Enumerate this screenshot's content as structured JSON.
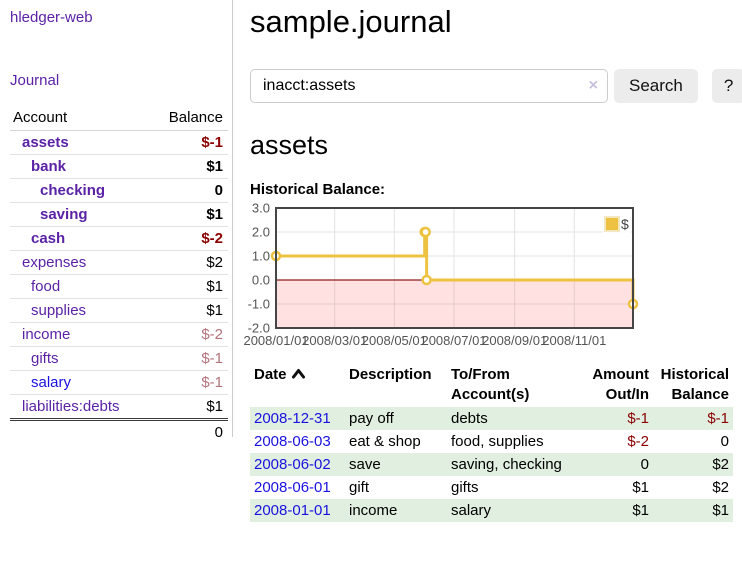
{
  "app": {
    "brand": "hledger-web",
    "nav_journal": "Journal"
  },
  "sidebar": {
    "accounts_table": {
      "headers": {
        "account": "Account",
        "balance": "Balance"
      },
      "rows": [
        {
          "name": "assets",
          "depth": 1,
          "bold": true,
          "link_color": "purple",
          "balance": "$-1",
          "balance_style": "negative_strong"
        },
        {
          "name": "bank",
          "depth": 2,
          "bold": true,
          "link_color": "purple",
          "balance": "$1",
          "balance_style": "normal"
        },
        {
          "name": "checking",
          "depth": 3,
          "bold": true,
          "link_color": "purple",
          "balance": "0",
          "balance_style": "normal"
        },
        {
          "name": "saving",
          "depth": 3,
          "bold": true,
          "link_color": "purple",
          "balance": "$1",
          "balance_style": "normal"
        },
        {
          "name": "cash",
          "depth": 2,
          "bold": true,
          "link_color": "purple",
          "balance": "$-2",
          "balance_style": "negative_strong"
        },
        {
          "name": "expenses",
          "depth": 1,
          "bold": false,
          "link_color": "purple",
          "balance": "$2",
          "balance_style": "normal"
        },
        {
          "name": "food",
          "depth": 2,
          "bold": false,
          "link_color": "purple",
          "balance": "$1",
          "balance_style": "normal"
        },
        {
          "name": "supplies",
          "depth": 2,
          "bold": false,
          "link_color": "purple",
          "balance": "$1",
          "balance_style": "normal"
        },
        {
          "name": "income",
          "depth": 1,
          "bold": false,
          "link_color": "purple",
          "balance": "$-2",
          "balance_style": "negative_muted"
        },
        {
          "name": "gifts",
          "depth": 2,
          "bold": false,
          "link_color": "purple",
          "balance": "$-1",
          "balance_style": "negative_muted"
        },
        {
          "name": "salary",
          "depth": 2,
          "bold": false,
          "link_color": "blue",
          "balance": "$-1",
          "balance_style": "negative_muted"
        },
        {
          "name": "liabilities:debts",
          "depth": 1,
          "bold": false,
          "link_color": "purple",
          "balance": "$1",
          "balance_style": "normal"
        }
      ],
      "total": "0"
    }
  },
  "main": {
    "title": "sample.journal",
    "search": {
      "value": "inacct:assets",
      "clear_icon": "×",
      "button": "Search",
      "help_button": "?"
    },
    "account_heading": "assets",
    "chart_label": "Historical Balance:",
    "register_table": {
      "headers": {
        "date": "Date",
        "description": "Description",
        "accounts": "To/From Account(s)",
        "amount": "Amount Out/In",
        "balance": "Historical Balance"
      },
      "sort": "date-ascending",
      "rows": [
        {
          "date": "2008-12-31",
          "description": "pay off",
          "accounts": "debts",
          "amount": "$-1",
          "amount_negative": true,
          "balance": "$-1",
          "balance_negative": true,
          "shaded": true
        },
        {
          "date": "2008-06-03",
          "description": "eat & shop",
          "accounts": "food, supplies",
          "amount": "$-2",
          "amount_negative": true,
          "balance": "0",
          "balance_negative": false,
          "shaded": false
        },
        {
          "date": "2008-06-02",
          "description": "save",
          "accounts": "saving, checking",
          "amount": "0",
          "amount_negative": false,
          "balance": "$2",
          "balance_negative": false,
          "shaded": true
        },
        {
          "date": "2008-06-01",
          "description": "gift",
          "accounts": "gifts",
          "amount": "$1",
          "amount_negative": false,
          "balance": "$2",
          "balance_negative": false,
          "shaded": false
        },
        {
          "date": "2008-01-01",
          "description": "income",
          "accounts": "salary",
          "amount": "$1",
          "amount_negative": false,
          "balance": "$1",
          "balance_negative": false,
          "shaded": true
        }
      ]
    }
  },
  "chart_data": {
    "type": "line",
    "title": "Historical Balance:",
    "step": true,
    "series": [
      {
        "name": "$",
        "color": "#edc240",
        "points": [
          {
            "date": "2008-01-01",
            "day": 0,
            "value": 1
          },
          {
            "date": "2008-06-01",
            "day": 152,
            "value": 2
          },
          {
            "date": "2008-06-02",
            "day": 153,
            "value": 2
          },
          {
            "date": "2008-06-03",
            "day": 154,
            "value": 0
          },
          {
            "date": "2008-12-31",
            "day": 365,
            "value": -1
          }
        ]
      }
    ],
    "x_ticks": [
      {
        "label": "2008/01/01",
        "day": 0
      },
      {
        "label": "2008/03/01",
        "day": 60
      },
      {
        "label": "2008/05/01",
        "day": 121
      },
      {
        "label": "2008/07/01",
        "day": 182
      },
      {
        "label": "2008/09/01",
        "day": 244
      },
      {
        "label": "2008/11/01",
        "day": 305
      }
    ],
    "y_ticks": [
      3.0,
      2.0,
      1.0,
      0.0,
      -1.0,
      -2.0
    ],
    "ylim": [
      -2,
      3
    ],
    "xlim_days": [
      0,
      365
    ],
    "grid_color": "#e3e3e3",
    "border_color": "#454545",
    "tick_text_color": "#545454",
    "zero_line_color": "#8e1f1f",
    "negative_region_color": "rgba(255,70,70,0.16)",
    "legend": {
      "label": "$",
      "swatch_color": "#edc240",
      "position": "top-right"
    }
  }
}
